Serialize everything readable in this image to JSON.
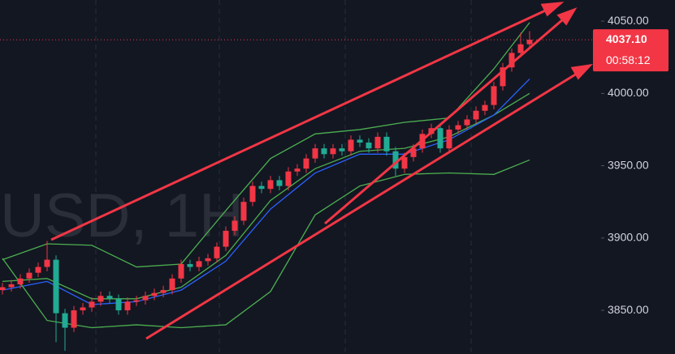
{
  "chart_data": {
    "type": "candlestick",
    "watermark": "USD, 1H",
    "up_color": "#f23645",
    "down_color": "#22ab94",
    "background": "#131722",
    "open": [
      3864,
      3866,
      3868,
      3872,
      3876,
      3880,
      3885,
      3848,
      3838,
      3850,
      3852,
      3856,
      3860,
      3858,
      3850,
      3856,
      3857,
      3860,
      3862,
      3864,
      3872,
      3882,
      3880,
      3884,
      3886,
      3894,
      3905,
      3912,
      3925,
      3936,
      3934,
      3940,
      3936,
      3946,
      3948,
      3955,
      3962,
      3958,
      3962,
      3960,
      3968,
      3966,
      3962,
      3970,
      3960,
      3948,
      3956,
      3962,
      3972,
      3976,
      3962,
      3975,
      3978,
      3982,
      3988,
      3992,
      4005,
      4018,
      4028,
      4034
    ],
    "high": [
      3869,
      3871,
      3875,
      3879,
      3883,
      3898,
      3888,
      3851,
      3853,
      3855,
      3859,
      3863,
      3863,
      3861,
      3859,
      3860,
      3863,
      3865,
      3867,
      3875,
      3885,
      3885,
      3887,
      3889,
      3897,
      3908,
      3915,
      3928,
      3939,
      3939,
      3943,
      3943,
      3949,
      3951,
      3958,
      3965,
      3965,
      3965,
      3965,
      3971,
      3971,
      3969,
      3973,
      3973,
      3963,
      3959,
      3965,
      3975,
      3979,
      3979,
      3978,
      3981,
      3985,
      3991,
      3995,
      4008,
      4021,
      4031,
      4042,
      4043
    ],
    "low": [
      3861,
      3863,
      3865,
      3869,
      3873,
      3877,
      3828,
      3822,
      3835,
      3847,
      3849,
      3853,
      3855,
      3847,
      3847,
      3853,
      3854,
      3857,
      3859,
      3861,
      3869,
      3877,
      3877,
      3881,
      3883,
      3891,
      3902,
      3909,
      3922,
      3931,
      3931,
      3933,
      3933,
      3943,
      3945,
      3952,
      3955,
      3955,
      3957,
      3957,
      3963,
      3959,
      3959,
      3957,
      3943,
      3945,
      3953,
      3959,
      3969,
      3959,
      3959,
      3972,
      3975,
      3979,
      3985,
      3989,
      4002,
      4015,
      4025,
      4031
    ],
    "close": [
      3866,
      3868,
      3872,
      3876,
      3880,
      3885,
      3848,
      3838,
      3850,
      3852,
      3856,
      3860,
      3858,
      3850,
      3856,
      3857,
      3860,
      3862,
      3864,
      3872,
      3882,
      3880,
      3884,
      3886,
      3894,
      3905,
      3912,
      3925,
      3936,
      3934,
      3940,
      3936,
      3946,
      3948,
      3955,
      3962,
      3958,
      3962,
      3960,
      3968,
      3966,
      3962,
      3970,
      3960,
      3948,
      3956,
      3962,
      3972,
      3976,
      3962,
      3975,
      3978,
      3982,
      3988,
      3992,
      4005,
      4018,
      4028,
      4034,
      4037.1
    ],
    "overlays": [
      {
        "color": "#4caf50",
        "x": [
          0,
          5,
          10,
          15,
          20,
          25,
          30,
          35,
          40,
          45,
          50,
          55,
          59
        ],
        "values": [
          3885,
          3896,
          3895,
          3880,
          3882,
          3919,
          3955,
          3972,
          3975,
          3980,
          3983,
          4017,
          4049
        ]
      },
      {
        "color": "#4caf50",
        "x": [
          0,
          5,
          10,
          15,
          20,
          25,
          30,
          35,
          40,
          45,
          50,
          55,
          59
        ],
        "values": [
          3870,
          3872,
          3858,
          3858,
          3866,
          3888,
          3926,
          3948,
          3960,
          3962,
          3970,
          3985,
          4000
        ]
      },
      {
        "color": "#2962ff",
        "x": [
          0,
          5,
          10,
          15,
          20,
          25,
          30,
          35,
          40,
          45,
          50,
          55,
          59
        ],
        "values": [
          3864,
          3870,
          3854,
          3856,
          3864,
          3884,
          3920,
          3945,
          3958,
          3958,
          3968,
          3985,
          4010
        ]
      },
      {
        "color": "#4caf50",
        "x": [
          0,
          5,
          10,
          15,
          20,
          25,
          30,
          35,
          40,
          45,
          50,
          55,
          59
        ],
        "values": [
          3886,
          3843,
          3838,
          3840,
          3838,
          3840,
          3863,
          3916,
          3936,
          3944,
          3945,
          3944,
          3954
        ]
      }
    ],
    "ylim": [
      3819.8,
      4064.6
    ],
    "yticks": [
      {
        "value": 3850,
        "label": "3850.00"
      },
      {
        "value": 3900,
        "label": "3900.00"
      },
      {
        "value": 3950,
        "label": "3950.00"
      },
      {
        "value": 4000,
        "label": "4000.00"
      },
      {
        "value": 4050,
        "label": "4050.00"
      }
    ],
    "last_price": {
      "value": 4037.1,
      "label": "4037.10"
    },
    "countdown": "00:58:12"
  }
}
